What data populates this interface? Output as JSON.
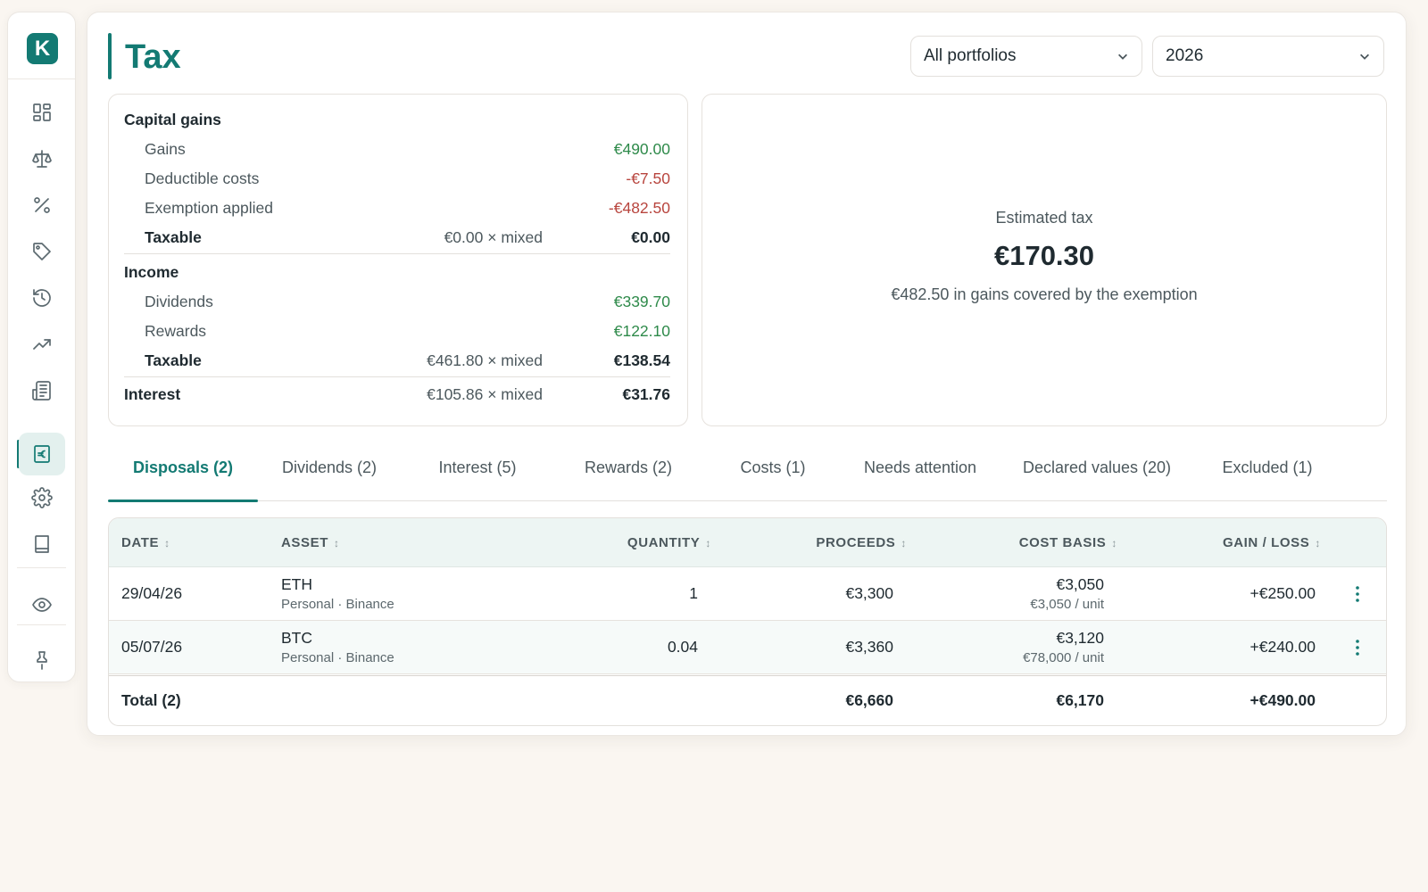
{
  "app": {
    "logo_letter": "K",
    "accent_color": "#137a73"
  },
  "sidebar": {
    "items": [
      {
        "icon": "dashboard-icon"
      },
      {
        "icon": "scale-icon"
      },
      {
        "icon": "percent-icon"
      },
      {
        "icon": "tag-icon"
      },
      {
        "icon": "history-icon"
      },
      {
        "icon": "trending-up-icon"
      },
      {
        "icon": "newspaper-icon"
      },
      {
        "icon": "euro-receipt-icon",
        "active": true
      },
      {
        "icon": "gear-icon"
      },
      {
        "icon": "book-icon"
      },
      {
        "icon": "eye-icon"
      },
      {
        "icon": "pin-icon"
      }
    ]
  },
  "header": {
    "title": "Tax",
    "portfolio_select": "All portfolios",
    "year_select": "2026"
  },
  "summary": {
    "capital_gains": {
      "heading": "Capital gains",
      "gains": {
        "label": "Gains",
        "value": "€490.00"
      },
      "deductible_costs": {
        "label": "Deductible costs",
        "value": "-€7.50"
      },
      "exemption_applied": {
        "label": "Exemption applied",
        "value": "-€482.50"
      },
      "taxable": {
        "label": "Taxable",
        "rate": "€0.00 × mixed",
        "value": "€0.00"
      }
    },
    "income": {
      "heading": "Income",
      "dividends": {
        "label": "Dividends",
        "value": "€339.70"
      },
      "rewards": {
        "label": "Rewards",
        "value": "€122.10"
      },
      "taxable": {
        "label": "Taxable",
        "rate": "€461.80 × mixed",
        "value": "€138.54"
      }
    },
    "interest": {
      "label": "Interest",
      "rate": "€105.86 × mixed",
      "value": "€31.76"
    }
  },
  "estimate": {
    "label": "Estimated tax",
    "value": "€170.30",
    "note": "€482.50 in gains covered by the exemption"
  },
  "tabs": [
    {
      "label": "Disposals (2)",
      "active": true
    },
    {
      "label": "Dividends (2)"
    },
    {
      "label": "Interest (5)"
    },
    {
      "label": "Rewards (2)"
    },
    {
      "label": "Costs (1)"
    },
    {
      "label": "Needs attention"
    },
    {
      "label": "Declared values (20)"
    },
    {
      "label": "Excluded (1)"
    }
  ],
  "table": {
    "columns": [
      "DATE",
      "ASSET",
      "QUANTITY",
      "PROCEEDS",
      "COST BASIS",
      "GAIN / LOSS"
    ],
    "rows": [
      {
        "date": "29/04/26",
        "asset": "ETH",
        "account": "Personal · Binance",
        "quantity": "1",
        "proceeds": "€3,300",
        "cost_basis": "€3,050",
        "cost_unit": "€3,050 / unit",
        "gain": "+€250.00"
      },
      {
        "date": "05/07/26",
        "asset": "BTC",
        "account": "Personal · Binance",
        "quantity": "0.04",
        "proceeds": "€3,360",
        "cost_basis": "€3,120",
        "cost_unit": "€78,000 / unit",
        "gain": "+€240.00"
      }
    ],
    "total": {
      "label": "Total (2)",
      "proceeds": "€6,660",
      "cost_basis": "€6,170",
      "gain": "+€490.00"
    }
  }
}
